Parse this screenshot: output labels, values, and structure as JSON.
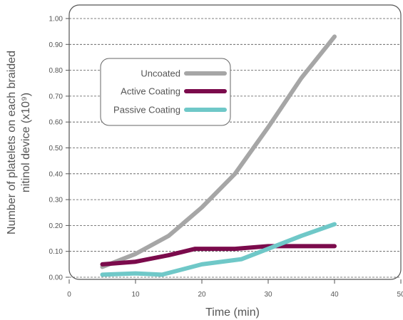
{
  "chart_data": {
    "type": "line",
    "xlabel": "Time (min)",
    "ylabel_line1": "Number of platelets on each braided",
    "ylabel_line2": "nitinol device  (x10⁹)",
    "xlim": [
      0,
      50
    ],
    "ylim": [
      0,
      1.0
    ],
    "x_ticks": [
      "0",
      "10",
      "20",
      "30",
      "40",
      "50"
    ],
    "y_ticks": [
      "0.00",
      "0.10",
      "0.20",
      "0.30",
      "0.40",
      "0.50",
      "0.60",
      "0.70",
      "0.80",
      "0.90",
      "1.00"
    ],
    "grid": "horizontal-dashed",
    "legend_position": "upper-left",
    "series": [
      {
        "name": "Uncoated",
        "color": "#a6a6a6",
        "points": [
          [
            5,
            0.04
          ],
          [
            10,
            0.09
          ],
          [
            15,
            0.16
          ],
          [
            20,
            0.27
          ],
          [
            25,
            0.4
          ],
          [
            30,
            0.58
          ],
          [
            35,
            0.77
          ],
          [
            40,
            0.93
          ]
        ]
      },
      {
        "name": "Active Coating",
        "color": "#7b0b4c",
        "points": [
          [
            5,
            0.05
          ],
          [
            10,
            0.06
          ],
          [
            15,
            0.085
          ],
          [
            19,
            0.11
          ],
          [
            25,
            0.11
          ],
          [
            30,
            0.12
          ],
          [
            35,
            0.12
          ],
          [
            40,
            0.12
          ]
        ]
      },
      {
        "name": "Passive Coating",
        "color": "#6fc8c8",
        "points": [
          [
            5,
            0.01
          ],
          [
            10,
            0.015
          ],
          [
            14,
            0.01
          ],
          [
            20,
            0.05
          ],
          [
            26,
            0.07
          ],
          [
            30,
            0.11
          ],
          [
            35,
            0.16
          ],
          [
            40,
            0.205
          ]
        ]
      }
    ]
  }
}
